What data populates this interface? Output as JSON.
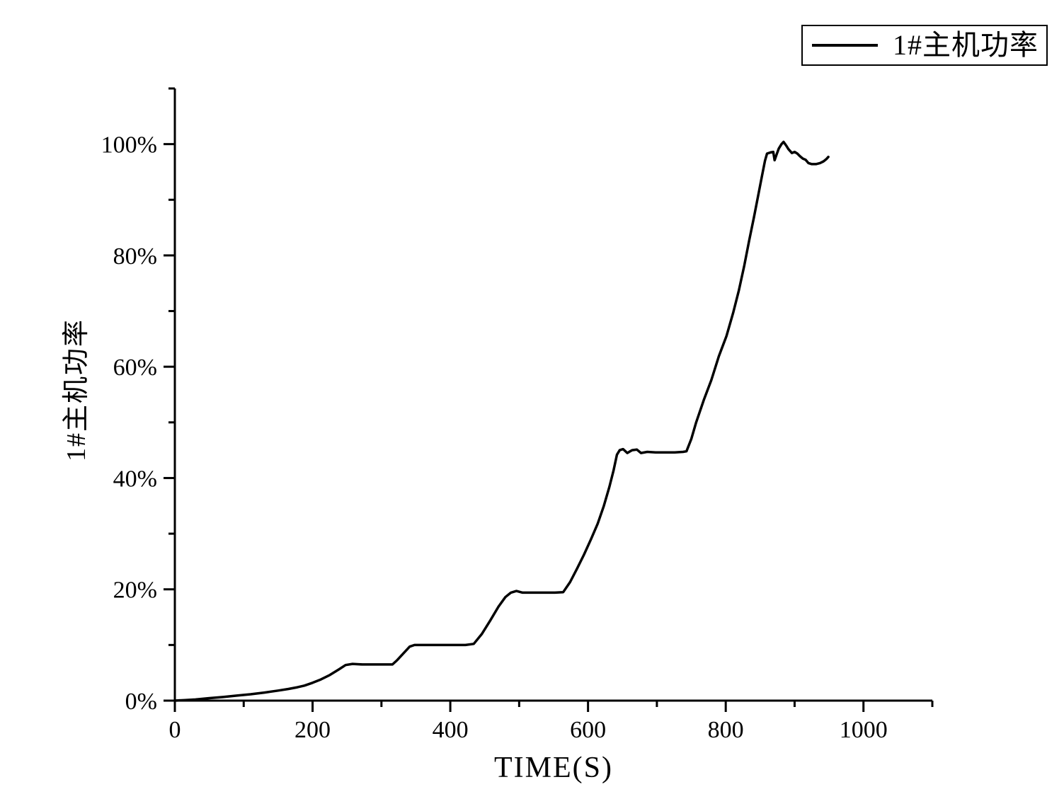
{
  "page": {
    "background": "#ffffff"
  },
  "legend": {
    "label": "1#主机功率",
    "line_color": "#000000"
  },
  "chart_data": {
    "type": "line",
    "title": "",
    "xlabel": "TIME(S)",
    "ylabel": "1#主机功率",
    "xlim": [
      0,
      1100
    ],
    "ylim": [
      0,
      110
    ],
    "grid": false,
    "legend_position": "top-right",
    "axis_color": "#000000",
    "x_major_ticks": [
      0,
      200,
      400,
      600,
      800,
      1000
    ],
    "x_minor_ticks": [
      100,
      300,
      500,
      700,
      900,
      1100
    ],
    "x_tick_labels": [
      "0",
      "200",
      "400",
      "600",
      "800",
      "1000"
    ],
    "y_major_ticks": [
      0,
      20,
      40,
      60,
      80,
      100
    ],
    "y_minor_ticks": [
      10,
      30,
      50,
      70,
      90,
      110
    ],
    "y_tick_labels": [
      "0%",
      "20%",
      "40%",
      "60%",
      "80%",
      "100%"
    ],
    "series": [
      {
        "name": "1#主机功率",
        "color": "#000000",
        "points": [
          [
            0,
            0
          ],
          [
            15,
            0.1
          ],
          [
            30,
            0.2
          ],
          [
            50,
            0.45
          ],
          [
            70,
            0.65
          ],
          [
            90,
            0.9
          ],
          [
            110,
            1.15
          ],
          [
            130,
            1.45
          ],
          [
            150,
            1.8
          ],
          [
            165,
            2.1
          ],
          [
            178,
            2.4
          ],
          [
            188,
            2.7
          ],
          [
            200,
            3.2
          ],
          [
            212,
            3.8
          ],
          [
            225,
            4.6
          ],
          [
            238,
            5.6
          ],
          [
            248,
            6.4
          ],
          [
            258,
            6.6
          ],
          [
            272,
            6.5
          ],
          [
            290,
            6.5
          ],
          [
            305,
            6.5
          ],
          [
            316,
            6.5
          ],
          [
            323,
            7.3
          ],
          [
            332,
            8.5
          ],
          [
            341,
            9.7
          ],
          [
            348,
            10
          ],
          [
            365,
            10
          ],
          [
            385,
            10
          ],
          [
            405,
            10
          ],
          [
            422,
            10
          ],
          [
            434,
            10.2
          ],
          [
            446,
            12
          ],
          [
            458,
            14.4
          ],
          [
            470,
            16.9
          ],
          [
            480,
            18.6
          ],
          [
            488,
            19.4
          ],
          [
            496,
            19.7
          ],
          [
            505,
            19.4
          ],
          [
            520,
            19.4
          ],
          [
            538,
            19.4
          ],
          [
            552,
            19.4
          ],
          [
            564,
            19.5
          ],
          [
            574,
            21.3
          ],
          [
            584,
            23.7
          ],
          [
            594,
            26.2
          ],
          [
            604,
            28.9
          ],
          [
            614,
            31.8
          ],
          [
            623,
            35
          ],
          [
            631,
            38.4
          ],
          [
            637,
            41.3
          ],
          [
            642,
            44.2
          ],
          [
            646,
            45
          ],
          [
            651,
            45.2
          ],
          [
            657,
            44.5
          ],
          [
            664,
            45
          ],
          [
            671,
            45.1
          ],
          [
            677,
            44.5
          ],
          [
            686,
            44.7
          ],
          [
            698,
            44.6
          ],
          [
            712,
            44.6
          ],
          [
            726,
            44.6
          ],
          [
            738,
            44.7
          ],
          [
            743,
            44.8
          ],
          [
            750,
            47
          ],
          [
            757,
            50
          ],
          [
            768,
            54
          ],
          [
            779,
            57.6
          ],
          [
            790,
            61.9
          ],
          [
            801,
            65.5
          ],
          [
            811,
            69.8
          ],
          [
            819,
            73.7
          ],
          [
            827,
            78.2
          ],
          [
            834,
            82.7
          ],
          [
            841,
            86.9
          ],
          [
            847,
            90.7
          ],
          [
            853,
            94.5
          ],
          [
            857,
            97
          ],
          [
            860,
            98.3
          ],
          [
            865,
            98.5
          ],
          [
            869,
            98.6
          ],
          [
            871,
            97.1
          ],
          [
            874,
            98.2
          ],
          [
            877,
            99.2
          ],
          [
            881,
            100
          ],
          [
            884,
            100.4
          ],
          [
            888,
            99.7
          ],
          [
            891,
            99.1
          ],
          [
            896,
            98.4
          ],
          [
            900,
            98.6
          ],
          [
            904,
            98.3
          ],
          [
            908,
            97.8
          ],
          [
            912,
            97.4
          ],
          [
            916,
            97.2
          ],
          [
            920,
            96.6
          ],
          [
            925,
            96.4
          ],
          [
            931,
            96.4
          ],
          [
            937,
            96.6
          ],
          [
            942,
            96.9
          ],
          [
            946,
            97.3
          ],
          [
            949,
            97.7
          ]
        ]
      }
    ]
  }
}
